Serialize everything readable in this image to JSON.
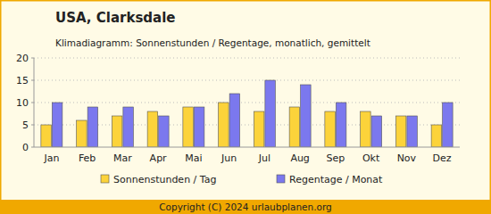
{
  "chart_data": {
    "type": "bar",
    "title": "USA, Clarksdale",
    "subtitle": "Klimadiagramm: Sonnenstunden / Regentage, monatlich, gemittelt",
    "categories": [
      "Jan",
      "Feb",
      "Mar",
      "Apr",
      "Mai",
      "Jun",
      "Jul",
      "Aug",
      "Sep",
      "Okt",
      "Nov",
      "Dez"
    ],
    "series": [
      {
        "name": "Sonnenstunden / Tag",
        "color": "#fcd33a",
        "values": [
          5,
          6,
          7,
          8,
          9,
          10,
          8,
          9,
          8,
          8,
          7,
          5
        ]
      },
      {
        "name": "Regentage / Monat",
        "color": "#7b78ee",
        "values": [
          10,
          9,
          9,
          7,
          9,
          12,
          15,
          14,
          10,
          7,
          7,
          10
        ]
      }
    ],
    "ylim": [
      0,
      20
    ],
    "yticks": [
      0,
      5,
      10,
      15,
      20
    ],
    "grid": true,
    "legend": "bottom",
    "annotations": [
      "Copyright (C) 2024 urlaubplanen.org"
    ]
  }
}
